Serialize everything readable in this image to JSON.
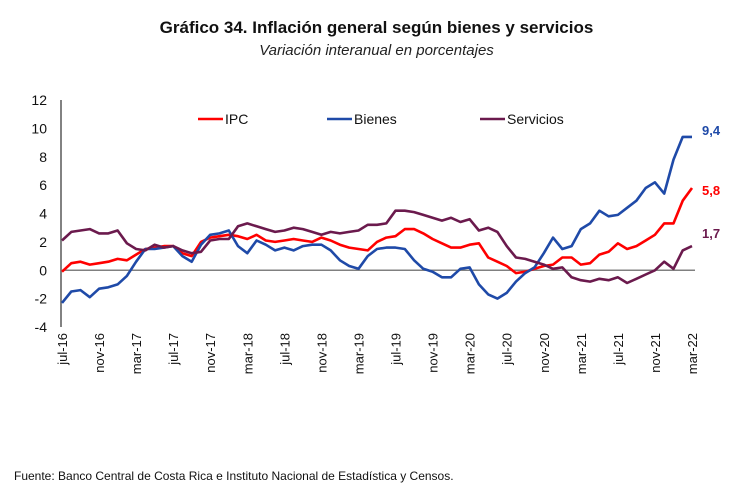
{
  "chart_data": {
    "type": "line",
    "title": "Gráfico 34. Inflación general según bienes y servicios",
    "subtitle": "Variación interanual en porcentajes",
    "source": "Fuente: Banco Central de Costa Rica e Instituto Nacional de Estadística y Censos.",
    "xlabel": "",
    "ylabel": "",
    "ylim": [
      -4,
      12
    ],
    "yticks": [
      "12",
      "10",
      "8",
      "6",
      "4",
      "2",
      "0",
      "-2",
      "-4"
    ],
    "ytick_values": [
      12,
      10,
      8,
      6,
      4,
      2,
      0,
      -2,
      -4
    ],
    "xtick_labels": [
      "jul-16",
      "nov-16",
      "mar-17",
      "jul-17",
      "nov-17",
      "mar-18",
      "jul-18",
      "nov-18",
      "mar-19",
      "jul-19",
      "nov-19",
      "mar-20",
      "jul-20",
      "nov-20",
      "mar-21",
      "jul-21",
      "nov-21",
      "mar-22"
    ],
    "xtick_every_months": 4,
    "n_points": 69,
    "legend_position": "top",
    "series": [
      {
        "name": "IPC",
        "color": "#ff0000",
        "end_label": "5,8",
        "values": [
          -0.1,
          0.5,
          0.6,
          0.4,
          0.5,
          0.6,
          0.8,
          0.7,
          1.1,
          1.5,
          1.6,
          1.7,
          1.7,
          1.2,
          1.0,
          2.0,
          2.3,
          2.4,
          2.5,
          2.4,
          2.2,
          2.5,
          2.1,
          2.0,
          2.1,
          2.2,
          2.1,
          2.0,
          2.3,
          2.1,
          1.8,
          1.6,
          1.5,
          1.4,
          2.0,
          2.3,
          2.4,
          2.9,
          2.9,
          2.6,
          2.2,
          1.9,
          1.6,
          1.6,
          1.8,
          1.9,
          0.9,
          0.6,
          0.3,
          -0.2,
          -0.1,
          0.1,
          0.3,
          0.4,
          0.9,
          0.9,
          0.4,
          0.5,
          1.1,
          1.3,
          1.9,
          1.5,
          1.7,
          2.1,
          2.5,
          3.3,
          3.3,
          4.9,
          5.8
        ]
      },
      {
        "name": "Bienes",
        "color": "#1f4aa8",
        "end_label": "9,4",
        "values": [
          -2.3,
          -1.5,
          -1.4,
          -1.9,
          -1.3,
          -1.2,
          -1.0,
          -0.4,
          0.6,
          1.5,
          1.5,
          1.6,
          1.7,
          1.0,
          0.6,
          1.8,
          2.5,
          2.6,
          2.8,
          1.7,
          1.2,
          2.1,
          1.8,
          1.4,
          1.6,
          1.4,
          1.7,
          1.8,
          1.8,
          1.4,
          0.7,
          0.3,
          0.1,
          1.0,
          1.5,
          1.6,
          1.6,
          1.5,
          0.7,
          0.1,
          -0.1,
          -0.5,
          -0.5,
          0.1,
          0.2,
          -1.0,
          -1.7,
          -2.0,
          -1.6,
          -0.8,
          -0.2,
          0.2,
          1.2,
          2.3,
          1.5,
          1.7,
          2.9,
          3.3,
          4.2,
          3.8,
          3.9,
          4.4,
          4.9,
          5.8,
          6.2,
          5.4,
          7.8,
          9.4,
          9.4
        ]
      },
      {
        "name": "Servicios",
        "color": "#6b1a4d",
        "end_label": "1,7",
        "values": [
          2.1,
          2.7,
          2.8,
          2.9,
          2.6,
          2.6,
          2.8,
          1.9,
          1.5,
          1.4,
          1.8,
          1.6,
          1.7,
          1.4,
          1.2,
          1.3,
          2.1,
          2.2,
          2.2,
          3.1,
          3.3,
          3.1,
          2.9,
          2.7,
          2.8,
          3.0,
          2.9,
          2.7,
          2.5,
          2.7,
          2.6,
          2.7,
          2.8,
          3.2,
          3.2,
          3.3,
          4.2,
          4.2,
          4.1,
          3.9,
          3.7,
          3.5,
          3.7,
          3.4,
          3.6,
          2.8,
          3.0,
          2.7,
          1.7,
          0.9,
          0.8,
          0.6,
          0.4,
          0.1,
          0.2,
          -0.5,
          -0.7,
          -0.8,
          -0.6,
          -0.7,
          -0.5,
          -0.9,
          -0.6,
          -0.3,
          0.0,
          0.6,
          0.1,
          1.4,
          1.7
        ]
      }
    ]
  }
}
